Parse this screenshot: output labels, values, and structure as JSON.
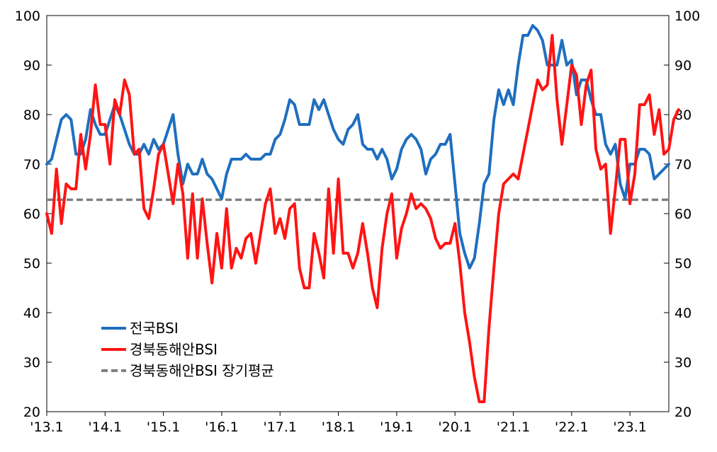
{
  "chart_data": {
    "type": "line",
    "y_ticks": [
      "20",
      "30",
      "40",
      "50",
      "60",
      "70",
      "80",
      "90",
      "100"
    ],
    "ylim": [
      20,
      100
    ],
    "x_ticks": [
      "'13.1",
      "'14.1",
      "'15.1",
      "'16.1",
      "'17.1",
      "'18.1",
      "'19.1",
      "'20.1",
      "'21.1",
      "'22.1",
      "'23.1"
    ],
    "grid": false,
    "legend_position": "bottom-left",
    "colors": {
      "national": "#1f6fbf",
      "gyeongbuk": "#ff1414",
      "average": "#808080"
    },
    "series": [
      {
        "name": "전국BSI",
        "values": [
          70,
          71,
          75,
          79,
          80,
          79,
          72,
          72,
          75,
          81,
          78,
          76,
          76,
          79,
          82,
          80,
          77,
          74,
          72,
          72,
          74,
          72,
          75,
          73,
          74,
          77,
          80,
          72,
          66,
          70,
          68,
          68,
          71,
          68,
          67,
          65,
          63,
          68,
          71,
          71,
          71,
          72,
          71,
          71,
          71,
          72,
          72,
          75,
          76,
          79,
          83,
          82,
          78,
          78,
          78,
          83,
          81,
          83,
          80,
          77,
          75,
          74,
          77,
          78,
          80,
          74,
          73,
          73,
          71,
          73,
          71,
          67,
          69,
          73,
          75,
          76,
          75,
          73,
          68,
          71,
          72,
          74,
          74,
          76,
          66,
          56,
          52,
          49,
          51,
          58,
          66,
          68,
          79,
          85,
          82,
          85,
          82,
          90,
          96,
          96,
          98,
          97,
          95,
          90,
          90,
          90,
          95,
          90,
          91,
          84,
          87,
          87,
          83,
          80,
          80,
          74,
          72,
          74,
          66,
          63,
          70,
          70,
          73,
          73,
          72,
          67,
          68,
          69,
          70
        ]
      },
      {
        "name": "경북동해안BSI",
        "values": [
          60,
          56,
          69,
          58,
          66,
          65,
          65,
          76,
          69,
          76,
          86,
          78,
          78,
          70,
          83,
          80,
          87,
          84,
          72,
          73,
          61,
          59,
          65,
          72,
          74,
          68,
          62,
          70,
          64,
          51,
          64,
          51,
          63,
          54,
          46,
          56,
          49,
          61,
          49,
          53,
          51,
          55,
          56,
          50,
          56,
          62,
          65,
          56,
          59,
          55,
          61,
          62,
          49,
          45,
          45,
          56,
          52,
          47,
          65,
          52,
          67,
          52,
          52,
          49,
          52,
          58,
          52,
          45,
          41,
          53,
          60,
          64,
          51,
          57,
          60,
          64,
          61,
          62,
          61,
          59,
          55,
          53,
          54,
          54,
          58,
          50,
          40,
          34,
          27,
          22,
          22,
          37,
          49,
          60,
          66,
          67,
          68,
          67,
          72,
          77,
          82,
          87,
          85,
          86,
          96,
          83,
          74,
          82,
          90,
          88,
          78,
          86,
          89,
          73,
          69,
          70,
          56,
          65,
          75,
          75,
          62,
          68,
          82,
          82,
          84,
          76,
          81,
          72,
          73,
          79,
          81
        ]
      },
      {
        "name": "경북동해안BSI 장기평균",
        "constant": 62.8
      }
    ]
  }
}
